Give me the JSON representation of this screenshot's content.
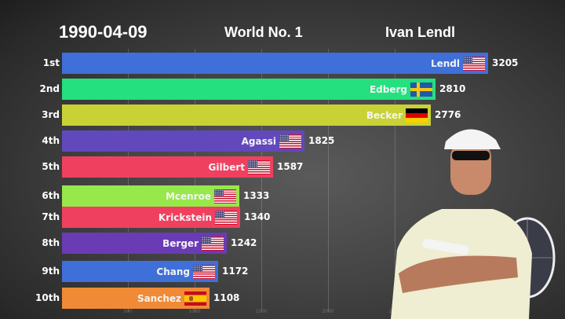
{
  "header": {
    "date": "1990-04-09",
    "subtitle": "World No. 1",
    "world_no1": "Ivan Lendl"
  },
  "axis": {
    "ticks": [
      "500",
      "1000",
      "1500",
      "2000",
      "2500"
    ]
  },
  "rows": [
    {
      "rank": "1st",
      "name": "Lendl",
      "value": "3205",
      "flag": "us",
      "color": "#3f6fd8"
    },
    {
      "rank": "2nd",
      "name": "Edberg",
      "value": "2810",
      "flag": "se",
      "color": "#24e07e"
    },
    {
      "rank": "3rd",
      "name": "Becker",
      "value": "2776",
      "flag": "de",
      "color": "#c9d234"
    },
    {
      "rank": "4th",
      "name": "Agassi",
      "value": "1825",
      "flag": "us",
      "color": "#6148bd"
    },
    {
      "rank": "5th",
      "name": "Gilbert",
      "value": "1587",
      "flag": "us",
      "color": "#f0405f"
    },
    {
      "rank": "6th",
      "name": "Mcenroe",
      "value": "1333",
      "flag": "us",
      "color": "#97e84a"
    },
    {
      "rank": "7th",
      "name": "Krickstein",
      "value": "1340",
      "flag": "us",
      "color": "#f0405f"
    },
    {
      "rank": "8th",
      "name": "Berger",
      "value": "1242",
      "flag": "us",
      "color": "#6a3bb5"
    },
    {
      "rank": "9th",
      "name": "Chang",
      "value": "1172",
      "flag": "us",
      "color": "#3f6fd8"
    },
    {
      "rank": "10th",
      "name": "Sanchez",
      "value": "1108",
      "flag": "es",
      "color": "#f08a36"
    }
  ],
  "photo": {
    "label": "Ivan Lendl photo"
  },
  "chart_data": {
    "type": "bar",
    "orientation": "horizontal",
    "title": "World No. 1",
    "date": "1990-04-09",
    "leader": "Ivan Lendl",
    "categories": [
      "Lendl",
      "Edberg",
      "Becker",
      "Agassi",
      "Gilbert",
      "Mcenroe",
      "Krickstein",
      "Berger",
      "Chang",
      "Sanchez"
    ],
    "ranks": [
      "1st",
      "2nd",
      "3rd",
      "4th",
      "5th",
      "6th",
      "7th",
      "8th",
      "9th",
      "10th"
    ],
    "countries": [
      "USA",
      "Sweden",
      "Germany",
      "USA",
      "USA",
      "USA",
      "USA",
      "USA",
      "USA",
      "Spain"
    ],
    "values": [
      3205,
      2810,
      2776,
      1825,
      1587,
      1333,
      1340,
      1242,
      1172,
      1108
    ],
    "xticks": [
      500,
      1000,
      1500,
      2000,
      2500
    ],
    "xlim": [
      0,
      3300
    ],
    "grid": true,
    "xlabel": "",
    "ylabel": ""
  }
}
